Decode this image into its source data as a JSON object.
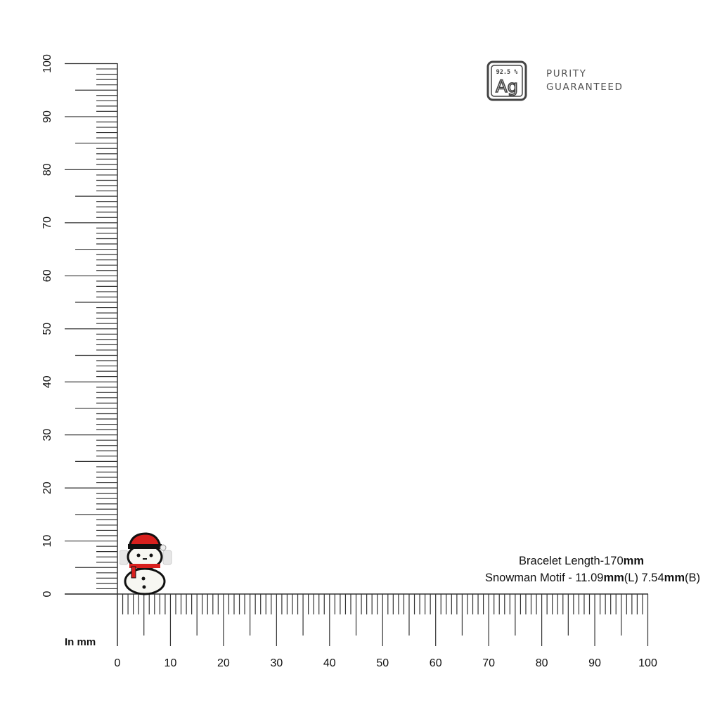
{
  "badge": {
    "percent": "92.5 %",
    "symbol": "Ag",
    "line1": "PURITY",
    "line2": "GUARANTEED"
  },
  "info": {
    "length_label": "Bracelet Length-170",
    "length_unit": "mm",
    "motif_label": "Snowman Motif - 11.09",
    "motif_unit_l": "mm",
    "motif_l": "(L) 7.54",
    "motif_unit_b": "mm",
    "motif_b": "(B)"
  },
  "ruler": {
    "unit_label": "In mm",
    "x_ticks": [
      "0",
      "10",
      "20",
      "30",
      "40",
      "50",
      "60",
      "70",
      "80",
      "90",
      "100"
    ],
    "y_ticks": [
      "0",
      "10",
      "20",
      "30",
      "40",
      "50",
      "60",
      "70",
      "80",
      "90",
      "100"
    ],
    "range_mm": [
      0,
      100
    ]
  },
  "colors": {
    "hat": "#d8201e",
    "scarf": "#d8201e",
    "outline": "#111111",
    "body": "#f7f7f2"
  }
}
